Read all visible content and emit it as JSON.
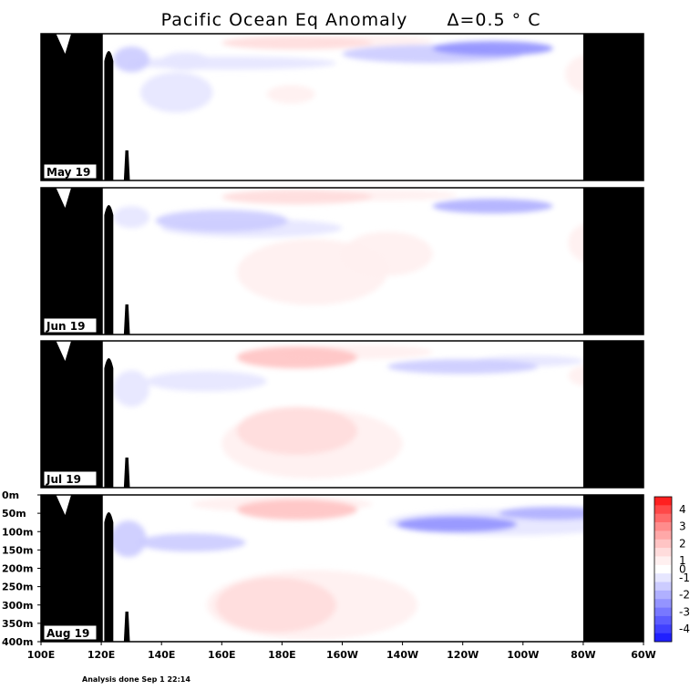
{
  "chart_data": {
    "type": "heatmap",
    "title": "Pacific Ocean Eq Anomaly",
    "contour_interval": "Δ=0.5 ° C",
    "footnote": "Analysis done Sep 1 22:14",
    "x_ticks": [
      "100E",
      "120E",
      "140E",
      "160E",
      "180E",
      "160W",
      "140W",
      "120W",
      "100W",
      "80W",
      "60W"
    ],
    "xlim_deg_east": [
      100,
      300
    ],
    "y_ticks": [
      "0m",
      "50m",
      "100m",
      "150m",
      "200m",
      "250m",
      "300m",
      "350m",
      "400m"
    ],
    "ylim_m": [
      0,
      400
    ],
    "colorbar": {
      "labels": [
        "4",
        "3",
        "2",
        "1",
        "0",
        "-1",
        "-2",
        "-3",
        "-4"
      ],
      "levels": [
        4.5,
        4,
        3.5,
        3,
        2.5,
        2,
        1.5,
        1,
        0.5,
        -0.5,
        -1,
        -1.5,
        -2,
        -2.5,
        -3,
        -3.5,
        -4,
        -4.5
      ],
      "colors": [
        "#ff2020",
        "#ff4848",
        "#ff6a6a",
        "#ff8c8c",
        "#ffa8a8",
        "#ffc4c4",
        "#ffdcdc",
        "#fff0f0",
        "#ffffff",
        "#e6e6ff",
        "#ccccff",
        "#b0b0ff",
        "#9494ff",
        "#7878ff",
        "#5c5cff",
        "#4040ff",
        "#2020ff"
      ]
    },
    "land_color": "#000000",
    "panels": [
      {
        "month": "May 19",
        "anomalies": [
          {
            "lon": 185,
            "depth": 25,
            "rx": 25,
            "ry": 18,
            "value": 1.0
          },
          {
            "lon": 210,
            "depth": 20,
            "rx": 20,
            "ry": 15,
            "value": 0.5
          },
          {
            "lon": 250,
            "depth": 40,
            "rx": 20,
            "ry": 20,
            "value": -2.5
          },
          {
            "lon": 230,
            "depth": 55,
            "rx": 30,
            "ry": 25,
            "value": -1.5
          },
          {
            "lon": 163,
            "depth": 80,
            "rx": 35,
            "ry": 18,
            "value": -1.0
          },
          {
            "lon": 130,
            "depth": 70,
            "rx": 6,
            "ry": 35,
            "value": -1.5
          },
          {
            "lon": 148,
            "depth": 75,
            "rx": 8,
            "ry": 25,
            "value": -1.0
          },
          {
            "lon": 145,
            "depth": 160,
            "rx": 12,
            "ry": 55,
            "value": -1.0
          },
          {
            "lon": 283,
            "depth": 110,
            "rx": 9,
            "ry": 55,
            "value": 0.5
          },
          {
            "lon": 183,
            "depth": 165,
            "rx": 8,
            "ry": 25,
            "value": 0.5
          },
          {
            "lon": 242,
            "depth": 140,
            "rx": 4,
            "ry": 10,
            "value": -0.5
          }
        ]
      },
      {
        "month": "Jun 19",
        "anomalies": [
          {
            "lon": 185,
            "depth": 25,
            "rx": 25,
            "ry": 20,
            "value": 1.0
          },
          {
            "lon": 213,
            "depth": 20,
            "rx": 25,
            "ry": 15,
            "value": 0.5
          },
          {
            "lon": 290,
            "depth": 10,
            "rx": 10,
            "ry": 8,
            "value": 0.5
          },
          {
            "lon": 250,
            "depth": 50,
            "rx": 20,
            "ry": 20,
            "value": -2.0
          },
          {
            "lon": 160,
            "depth": 90,
            "rx": 22,
            "ry": 30,
            "value": -1.5
          },
          {
            "lon": 170,
            "depth": 110,
            "rx": 30,
            "ry": 25,
            "value": -1.0
          },
          {
            "lon": 130,
            "depth": 80,
            "rx": 6,
            "ry": 30,
            "value": -1.0
          },
          {
            "lon": 270,
            "depth": 55,
            "rx": 15,
            "ry": 15,
            "value": -0.5
          },
          {
            "lon": 190,
            "depth": 230,
            "rx": 25,
            "ry": 90,
            "value": 0.5
          },
          {
            "lon": 215,
            "depth": 180,
            "rx": 15,
            "ry": 60,
            "value": 0.5
          },
          {
            "lon": 283,
            "depth": 150,
            "rx": 8,
            "ry": 55,
            "value": 0.5
          }
        ]
      },
      {
        "month": "Jul 19",
        "anomalies": [
          {
            "lon": 185,
            "depth": 45,
            "rx": 20,
            "ry": 30,
            "value": 1.5
          },
          {
            "lon": 205,
            "depth": 30,
            "rx": 25,
            "ry": 20,
            "value": 0.5
          },
          {
            "lon": 240,
            "depth": 70,
            "rx": 25,
            "ry": 20,
            "value": -1.5
          },
          {
            "lon": 262,
            "depth": 55,
            "rx": 18,
            "ry": 15,
            "value": -1.0
          },
          {
            "lon": 155,
            "depth": 110,
            "rx": 20,
            "ry": 28,
            "value": -1.0
          },
          {
            "lon": 190,
            "depth": 130,
            "rx": 35,
            "ry": 25,
            "value": -0.5
          },
          {
            "lon": 130,
            "depth": 130,
            "rx": 6,
            "ry": 50,
            "value": -1.0
          },
          {
            "lon": 185,
            "depth": 245,
            "rx": 20,
            "ry": 65,
            "value": 1.0
          },
          {
            "lon": 190,
            "depth": 280,
            "rx": 30,
            "ry": 95,
            "value": 0.5
          },
          {
            "lon": 283,
            "depth": 95,
            "rx": 8,
            "ry": 30,
            "value": 0.5
          }
        ]
      },
      {
        "month": "Aug 19",
        "anomalies": [
          {
            "lon": 185,
            "depth": 40,
            "rx": 20,
            "ry": 28,
            "value": 1.5
          },
          {
            "lon": 180,
            "depth": 25,
            "rx": 30,
            "ry": 22,
            "value": 0.5
          },
          {
            "lon": 238,
            "depth": 80,
            "rx": 20,
            "ry": 22,
            "value": -2.5
          },
          {
            "lon": 270,
            "depth": 50,
            "rx": 18,
            "ry": 18,
            "value": -2.0
          },
          {
            "lon": 255,
            "depth": 75,
            "rx": 40,
            "ry": 35,
            "value": -1.0
          },
          {
            "lon": 150,
            "depth": 130,
            "rx": 18,
            "ry": 25,
            "value": -1.5
          },
          {
            "lon": 155,
            "depth": 135,
            "rx": 35,
            "ry": 30,
            "value": -0.5
          },
          {
            "lon": 129,
            "depth": 120,
            "rx": 6,
            "ry": 50,
            "value": -1.5
          },
          {
            "lon": 178,
            "depth": 300,
            "rx": 20,
            "ry": 75,
            "value": 1.0
          },
          {
            "lon": 190,
            "depth": 300,
            "rx": 35,
            "ry": 95,
            "value": 0.5
          }
        ]
      }
    ]
  }
}
